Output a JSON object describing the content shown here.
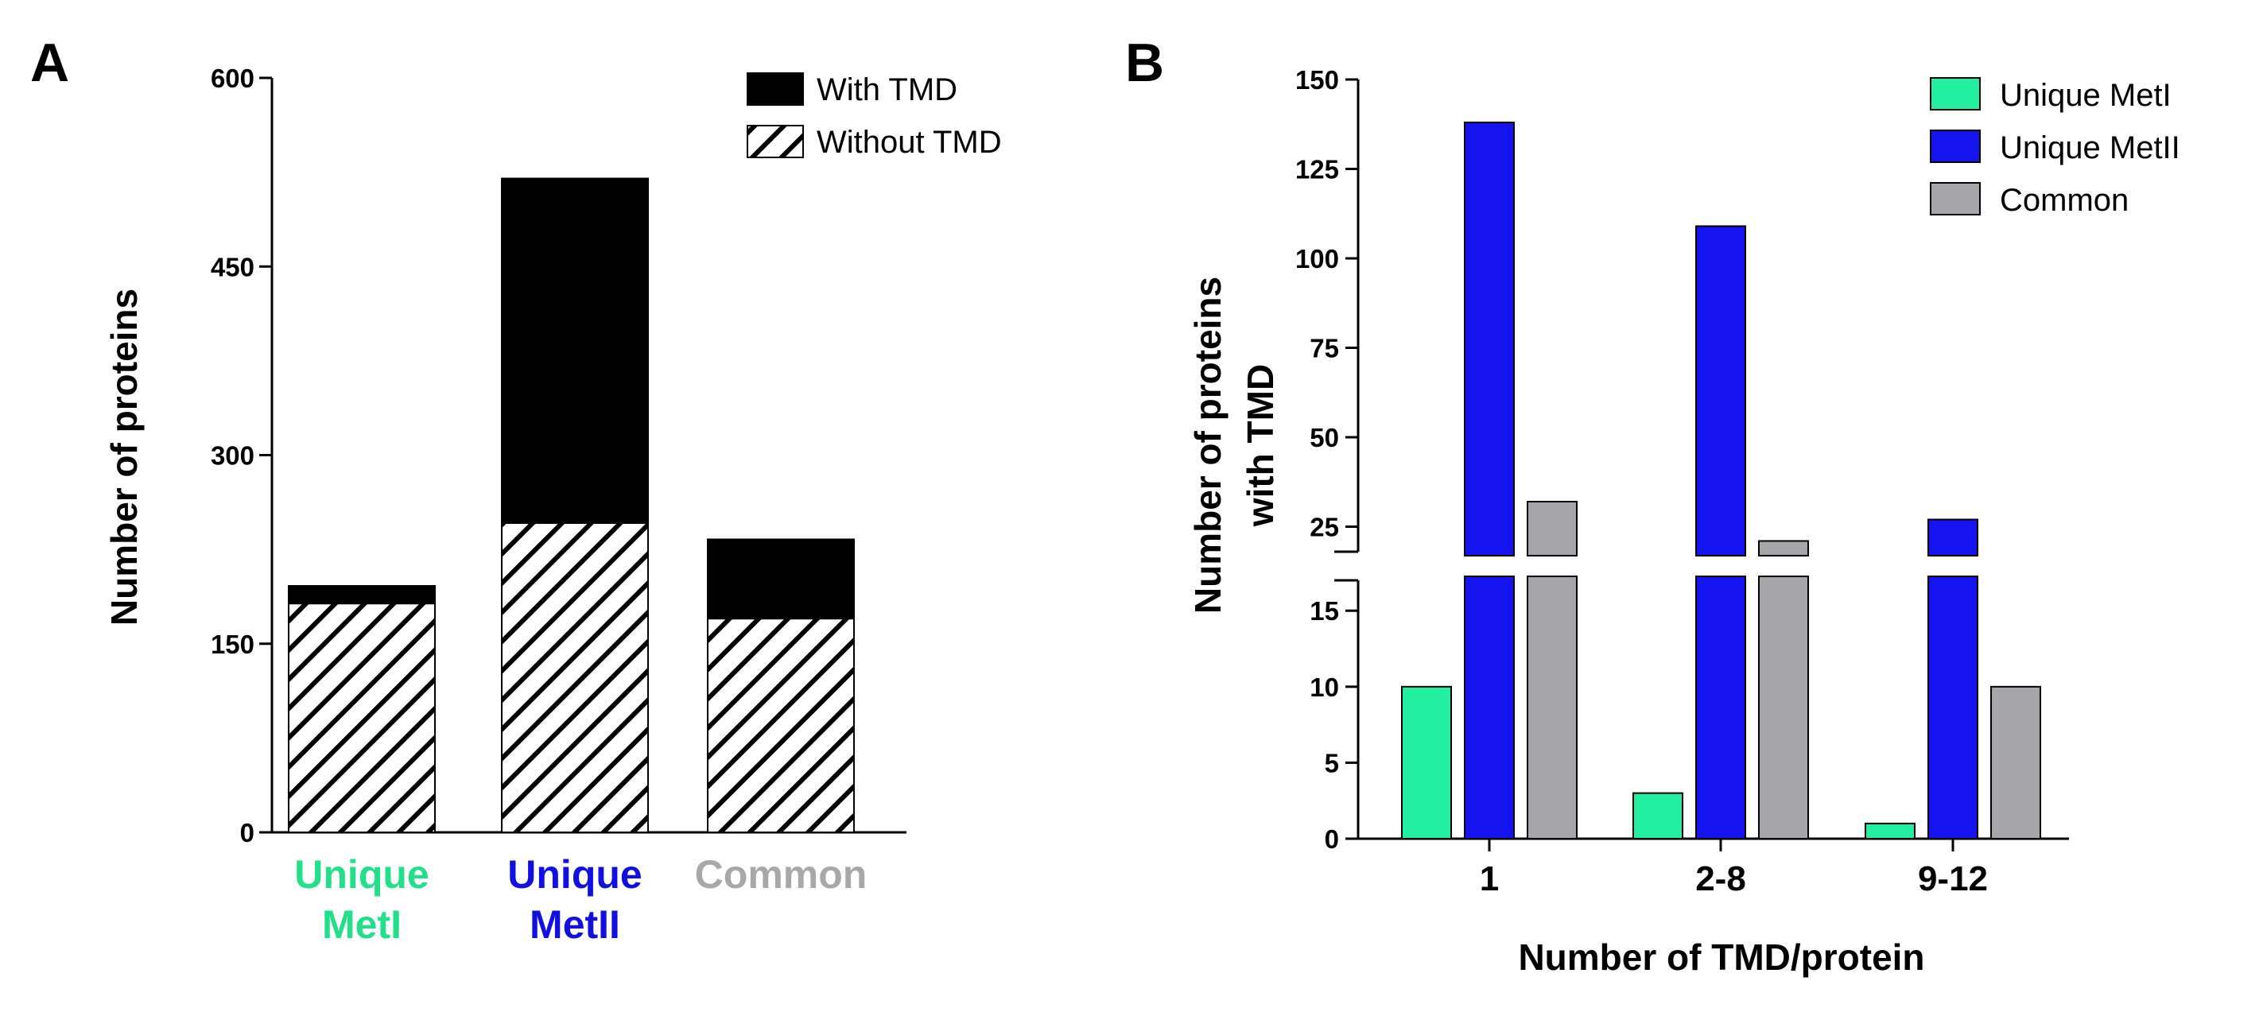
{
  "chart_data": [
    {
      "panel": "A",
      "type": "bar",
      "stacked": true,
      "ylabel": "Number of proteins",
      "xlabel": "",
      "ylim": [
        0,
        600
      ],
      "yticks": [
        0,
        150,
        300,
        450,
        600
      ],
      "categories": [
        {
          "line1": "Unique",
          "line2": "MetI",
          "color": "#22e08a"
        },
        {
          "line1": "Unique",
          "line2": "MetII",
          "color": "#1010e0"
        },
        {
          "line1": "Common",
          "line2": "",
          "color": "#a8a8a8"
        }
      ],
      "series": [
        {
          "name": "Without TMD",
          "fill": "hatch",
          "values": [
            182,
            246,
            170
          ]
        },
        {
          "name": "With TMD",
          "fill": "#000000",
          "values": [
            14,
            274,
            63
          ]
        }
      ],
      "legend": [
        "With TMD",
        "Without TMD"
      ],
      "legend_position": "top-right"
    },
    {
      "panel": "B",
      "type": "bar",
      "stacked": false,
      "ylabel_line1": "Number of proteins",
      "ylabel_line2": "with TMD",
      "xlabel": "Number of TMD/protein",
      "axis_break": [
        17,
        18
      ],
      "lower_range": [
        0,
        17
      ],
      "upper_range": [
        18,
        150
      ],
      "lower_ticks": [
        0,
        5,
        10,
        15
      ],
      "upper_ticks": [
        25,
        50,
        75,
        100,
        125,
        150
      ],
      "categories": [
        "1",
        "2-8",
        "9-12"
      ],
      "series": [
        {
          "name": "Unique MetI",
          "color": "#22f0a0",
          "values": [
            10,
            3,
            1
          ]
        },
        {
          "name": "Unique MetII",
          "color": "#1414f0",
          "values": [
            138,
            109,
            27
          ]
        },
        {
          "name": "Common",
          "color": "#a6a6aa",
          "values": [
            32,
            21,
            10
          ]
        }
      ],
      "legend_position": "top-right"
    }
  ]
}
